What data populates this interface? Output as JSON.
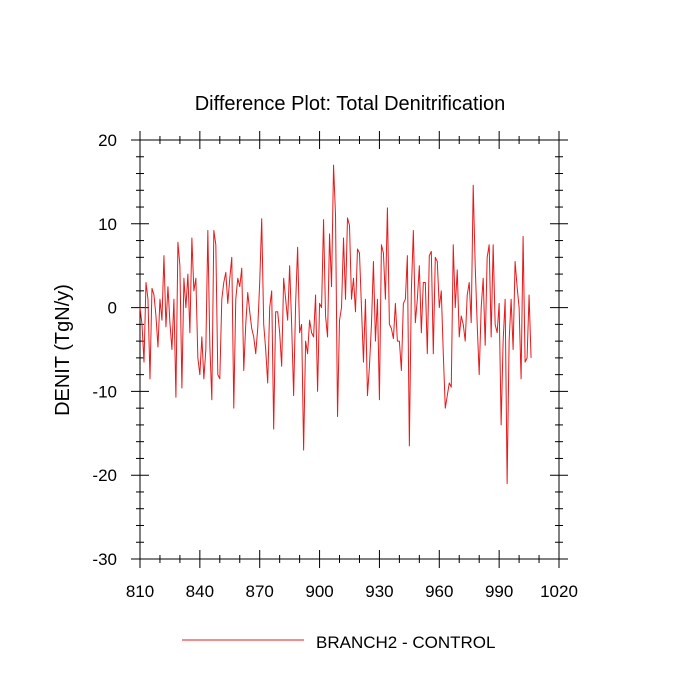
{
  "chart_data": {
    "type": "line",
    "title": "Difference Plot: Total Denitrification",
    "xlabel": "",
    "ylabel": "DENIT  (TgN/y)",
    "xlim": [
      810,
      1020
    ],
    "ylim": [
      -30,
      20
    ],
    "x_ticks": [
      810,
      840,
      870,
      900,
      930,
      960,
      990,
      1020
    ],
    "x_tick_labels": [
      "810",
      "840",
      "870",
      "900",
      "930",
      "960",
      "990",
      "1020"
    ],
    "y_ticks": [
      20,
      10,
      0,
      -10,
      -20,
      -30
    ],
    "y_tick_labels": [
      "20",
      "10",
      "0",
      "-10",
      "-20",
      "-30"
    ],
    "grid": false,
    "legend_position": "bottom-center",
    "series": [
      {
        "name": "BRANCH2 - CONTROL",
        "color": "#e8191a",
        "x_start": 810,
        "x_step": 1,
        "values": [
          0,
          -2,
          -6.5,
          3,
          1,
          -8.5,
          2.3,
          1.5,
          -1,
          -4.7,
          1,
          -1.5,
          6.2,
          -2.3,
          2.5,
          -1.8,
          -5,
          1,
          -10.7,
          7.8,
          5,
          -9.6,
          3.5,
          0,
          4,
          -3,
          8.3,
          2,
          3.5,
          -6,
          -8,
          -3.5,
          -8.5,
          -5,
          9.2,
          -4.5,
          -11,
          9.2,
          7.5,
          -8,
          -8.5,
          1,
          3,
          4.2,
          0.5,
          3.5,
          6,
          -12,
          1,
          3.5,
          2.5,
          4.7,
          -7.5,
          -2,
          1.8,
          -0.5,
          -2.5,
          -3.5,
          -5.5,
          -2.5,
          3,
          10.6,
          -2,
          -5,
          -9,
          0,
          2,
          -14.5,
          -0.5,
          -0.5,
          -3,
          -7,
          3.5,
          1,
          -1.5,
          5,
          -2,
          -10.5,
          0.5,
          7.2,
          -3,
          -2,
          -17,
          -4,
          -5.5,
          -1.5,
          -3,
          -3.5,
          1.5,
          -10,
          0.5,
          0,
          10.5,
          -1,
          -3.5,
          8.8,
          2.5,
          17,
          11,
          -13,
          -1.5,
          0,
          8.3,
          1,
          10.7,
          9.8,
          1,
          3.5,
          -0.5,
          7,
          6.5,
          0,
          -6.5,
          1,
          -10.5,
          -7,
          -2,
          5.5,
          -4,
          1,
          -11,
          7.5,
          6.5,
          1,
          11.9,
          -2,
          -2.5,
          -3.7,
          0.5,
          -4,
          -4,
          -7.5,
          0.5,
          1,
          6.2,
          -16.5,
          2,
          9.2,
          -1.8,
          1,
          5,
          -3,
          3,
          3,
          -5.5,
          6.2,
          6.7,
          -5.5,
          6,
          5.5,
          0,
          2,
          -5.5,
          -12,
          -10.5,
          -9,
          -9.5,
          7.5,
          0,
          4.5,
          -3.5,
          -1,
          -2,
          -4,
          1.5,
          3,
          -1.8,
          14.6,
          5,
          -2,
          -8,
          0,
          3.5,
          -4.5,
          6,
          7.5,
          -3.5,
          7.5,
          -2,
          -3,
          0.5,
          -14,
          -4,
          1,
          -21,
          -4,
          1,
          -5,
          5.5,
          2.5,
          0,
          -8.5,
          8.5,
          -6.5,
          -6,
          1.5,
          -6
        ]
      }
    ]
  }
}
